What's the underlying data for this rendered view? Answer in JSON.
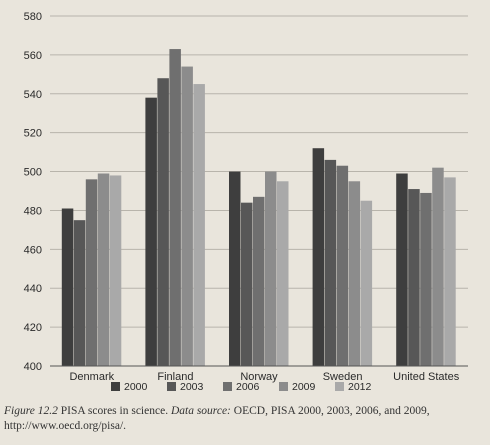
{
  "chart_data": {
    "type": "bar",
    "categories": [
      "Denmark",
      "Finland",
      "Norway",
      "Sweden",
      "United States"
    ],
    "series": [
      {
        "name": "2000",
        "values": [
          481,
          538,
          500,
          512,
          499
        ],
        "color": "#3e3e3e"
      },
      {
        "name": "2003",
        "values": [
          475,
          548,
          484,
          506,
          491
        ],
        "color": "#575757"
      },
      {
        "name": "2006",
        "values": [
          496,
          563,
          487,
          503,
          489
        ],
        "color": "#6f6f6f"
      },
      {
        "name": "2009",
        "values": [
          499,
          554,
          500,
          495,
          502
        ],
        "color": "#8c8c8c"
      },
      {
        "name": "2012",
        "values": [
          498,
          545,
          495,
          485,
          497
        ],
        "color": "#a9a9a9"
      }
    ],
    "ylim": [
      400,
      580
    ],
    "yticks": [
      400,
      420,
      440,
      460,
      480,
      500,
      520,
      540,
      560,
      580
    ],
    "grid": true,
    "legend": "bottom"
  },
  "caption": {
    "figure_label": "Figure 12.2",
    "title": "PISA scores in science.",
    "source_label": "Data source:",
    "source_text": "OECD, PISA 2000, 2003, 2006, and 2009, http://www.oecd.org/pisa/."
  }
}
